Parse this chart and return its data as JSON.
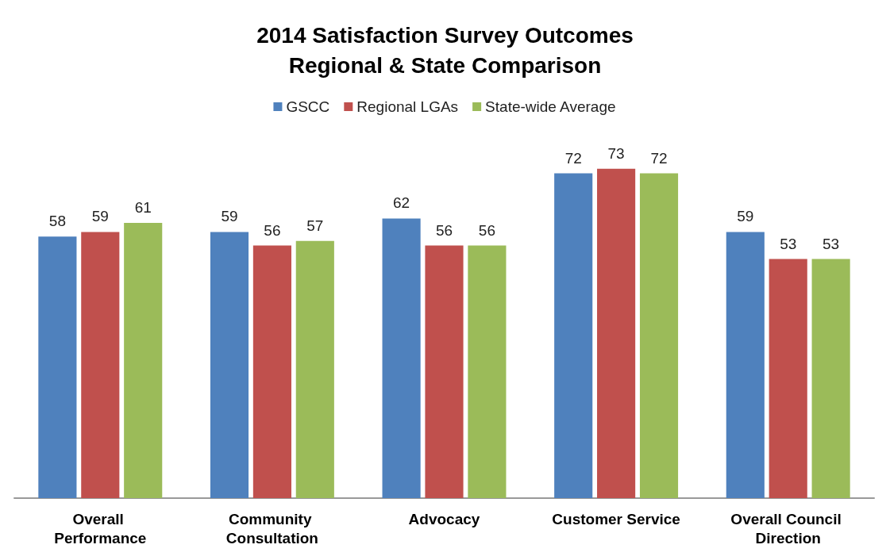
{
  "chart_data": {
    "type": "bar",
    "title": "2014 Satisfaction Survey Outcomes\nRegional & State Comparison",
    "categories": [
      "Overall Performance",
      "Community Consultation",
      "Advocacy",
      "Customer Service",
      "Overall Council Direction"
    ],
    "series": [
      {
        "name": "GSCC",
        "color": "#4f81bd",
        "values": [
          58,
          59,
          62,
          72,
          59
        ]
      },
      {
        "name": "Regional LGAs",
        "color": "#c0504d",
        "values": [
          59,
          56,
          56,
          73,
          53
        ]
      },
      {
        "name": "State-wide Average",
        "color": "#9bbb59",
        "values": [
          61,
          57,
          56,
          72,
          53
        ]
      }
    ],
    "data_labels": true,
    "legend": "top",
    "grid": false
  }
}
